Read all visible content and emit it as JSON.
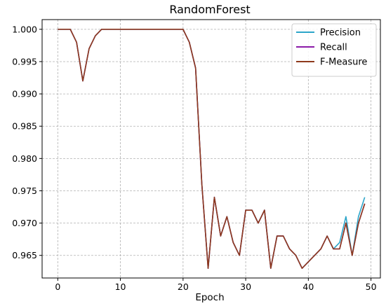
{
  "chart_data": {
    "type": "line",
    "title": "RandomForest",
    "xlabel": "Epoch",
    "ylabel": "",
    "xlim": [
      -2.5,
      51.5
    ],
    "ylim": [
      0.9615,
      1.0015
    ],
    "xticks": [
      0,
      10,
      20,
      30,
      40,
      50
    ],
    "yticks": [
      0.965,
      0.97,
      0.975,
      0.98,
      0.985,
      0.99,
      0.995,
      1.0
    ],
    "xtick_labels": [
      "0",
      "10",
      "20",
      "30",
      "40",
      "50"
    ],
    "ytick_labels": [
      "0.965",
      "0.970",
      "0.975",
      "0.980",
      "0.985",
      "0.990",
      "0.995",
      "1.000"
    ],
    "grid": true,
    "legend_position": "top-right",
    "x": [
      0,
      1,
      2,
      3,
      4,
      5,
      6,
      7,
      8,
      9,
      10,
      11,
      12,
      13,
      14,
      15,
      16,
      17,
      18,
      19,
      20,
      21,
      22,
      23,
      24,
      25,
      26,
      27,
      28,
      29,
      30,
      31,
      32,
      33,
      34,
      35,
      36,
      37,
      38,
      39,
      40,
      41,
      42,
      43,
      44,
      45,
      46,
      47,
      48,
      49
    ],
    "series": [
      {
        "name": "Precision",
        "color": "#2ca5c9",
        "values": [
          1.0,
          1.0,
          1.0,
          0.998,
          0.992,
          0.997,
          0.999,
          1.0,
          1.0,
          1.0,
          1.0,
          1.0,
          1.0,
          1.0,
          1.0,
          1.0,
          1.0,
          1.0,
          1.0,
          1.0,
          1.0,
          0.998,
          0.994,
          0.976,
          0.963,
          0.974,
          0.968,
          0.971,
          0.967,
          0.965,
          0.972,
          0.972,
          0.97,
          0.972,
          0.963,
          0.968,
          0.968,
          0.966,
          0.965,
          0.963,
          0.964,
          0.965,
          0.966,
          0.968,
          0.966,
          0.967,
          0.971,
          0.965,
          0.971,
          0.974
        ]
      },
      {
        "name": "Recall",
        "color": "#8b1aa8",
        "values": [
          1.0,
          1.0,
          1.0,
          0.998,
          0.992,
          0.997,
          0.999,
          1.0,
          1.0,
          1.0,
          1.0,
          1.0,
          1.0,
          1.0,
          1.0,
          1.0,
          1.0,
          1.0,
          1.0,
          1.0,
          1.0,
          0.998,
          0.994,
          0.976,
          0.963,
          0.974,
          0.968,
          0.971,
          0.967,
          0.965,
          0.972,
          0.972,
          0.97,
          0.972,
          0.963,
          0.968,
          0.968,
          0.966,
          0.965,
          0.963,
          0.964,
          0.965,
          0.966,
          0.968,
          0.966,
          0.966,
          0.97,
          0.965,
          0.97,
          0.973
        ]
      },
      {
        "name": "F-Measure",
        "color": "#8e3a1c",
        "values": [
          1.0,
          1.0,
          1.0,
          0.998,
          0.992,
          0.997,
          0.999,
          1.0,
          1.0,
          1.0,
          1.0,
          1.0,
          1.0,
          1.0,
          1.0,
          1.0,
          1.0,
          1.0,
          1.0,
          1.0,
          1.0,
          0.998,
          0.994,
          0.976,
          0.963,
          0.974,
          0.968,
          0.971,
          0.967,
          0.965,
          0.972,
          0.972,
          0.97,
          0.972,
          0.963,
          0.968,
          0.968,
          0.966,
          0.965,
          0.963,
          0.964,
          0.965,
          0.966,
          0.968,
          0.966,
          0.966,
          0.97,
          0.965,
          0.97,
          0.973
        ]
      }
    ]
  }
}
